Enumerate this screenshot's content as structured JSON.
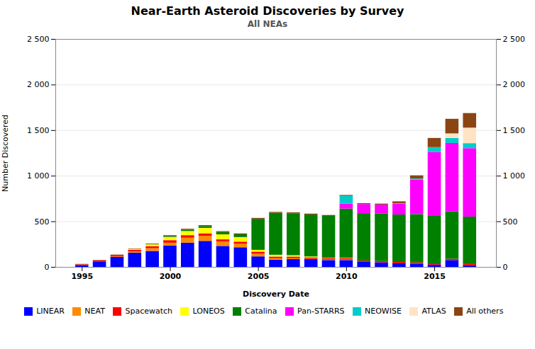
{
  "chart_data": {
    "type": "bar",
    "stacked": true,
    "title": "Near-Earth Asteroid Discoveries by Survey",
    "subtitle": "All NEAs",
    "xlabel": "Discovery Date",
    "ylabel": "Number Discovered",
    "x": [
      1995,
      1996,
      1997,
      1998,
      1999,
      2000,
      2001,
      2002,
      2003,
      2004,
      2005,
      2006,
      2007,
      2008,
      2009,
      2010,
      2011,
      2012,
      2013,
      2014,
      2015,
      2016,
      2017
    ],
    "series": [
      {
        "name": "LINEAR",
        "color": "#0000FF",
        "values": [
          20,
          55,
          110,
          155,
          175,
          235,
          265,
          285,
          230,
          215,
          115,
          80,
          85,
          85,
          75,
          75,
          55,
          50,
          40,
          35,
          25,
          75,
          18
        ]
      },
      {
        "name": "NEAT",
        "color": "#FF8C00",
        "values": [
          0,
          0,
          5,
          15,
          30,
          30,
          55,
          55,
          50,
          40,
          30,
          15,
          10,
          5,
          5,
          5,
          0,
          0,
          0,
          0,
          0,
          0,
          0
        ]
      },
      {
        "name": "Spacewatch",
        "color": "#FF0000",
        "values": [
          8,
          15,
          15,
          18,
          22,
          28,
          28,
          28,
          22,
          22,
          22,
          18,
          18,
          14,
          14,
          14,
          14,
          14,
          14,
          14,
          14,
          14,
          14
        ]
      },
      {
        "name": "LONEOS",
        "color": "#FFFF00",
        "values": [
          0,
          0,
          0,
          10,
          20,
          35,
          45,
          60,
          55,
          50,
          20,
          20,
          15,
          10,
          5,
          5,
          0,
          0,
          0,
          0,
          0,
          0,
          0
        ]
      },
      {
        "name": "Catalina",
        "color": "#008000",
        "values": [
          0,
          0,
          0,
          0,
          5,
          10,
          15,
          20,
          25,
          30,
          340,
          460,
          460,
          460,
          460,
          540,
          520,
          520,
          520,
          530,
          520,
          520,
          520
        ]
      },
      {
        "name": "Pan-STARRS",
        "color": "#FF00FF",
        "values": [
          0,
          0,
          0,
          0,
          0,
          0,
          0,
          0,
          0,
          0,
          0,
          0,
          0,
          0,
          0,
          55,
          100,
          100,
          120,
          380,
          700,
          750,
          750
        ]
      },
      {
        "name": "NEOWISE",
        "color": "#00CCCC",
        "values": [
          0,
          0,
          0,
          0,
          0,
          0,
          0,
          0,
          0,
          0,
          0,
          0,
          0,
          0,
          0,
          85,
          0,
          0,
          5,
          10,
          55,
          55,
          55
        ]
      },
      {
        "name": "ATLAS",
        "color": "#FFE4C4",
        "values": [
          0,
          0,
          0,
          0,
          0,
          0,
          0,
          0,
          0,
          0,
          0,
          0,
          0,
          0,
          0,
          0,
          0,
          0,
          0,
          0,
          0,
          50,
          170
        ]
      },
      {
        "name": "All others",
        "color": "#8B4513",
        "values": [
          5,
          5,
          5,
          5,
          5,
          10,
          10,
          10,
          10,
          10,
          10,
          10,
          10,
          10,
          10,
          10,
          10,
          10,
          20,
          35,
          100,
          160,
          160
        ]
      }
    ],
    "xlim": [
      1993.5,
      2018.5
    ],
    "xticks": [
      1995,
      2000,
      2005,
      2010,
      2015
    ],
    "ylim": [
      0,
      2500
    ],
    "yticks": [
      0,
      500,
      {
        "value": 1000,
        "label": "1 000"
      },
      {
        "value": 1500,
        "label": "1 500"
      },
      {
        "value": 2000,
        "label": "2 000"
      },
      {
        "value": 2500,
        "label": "2 500"
      }
    ],
    "grid": true,
    "legend": "bottom"
  }
}
